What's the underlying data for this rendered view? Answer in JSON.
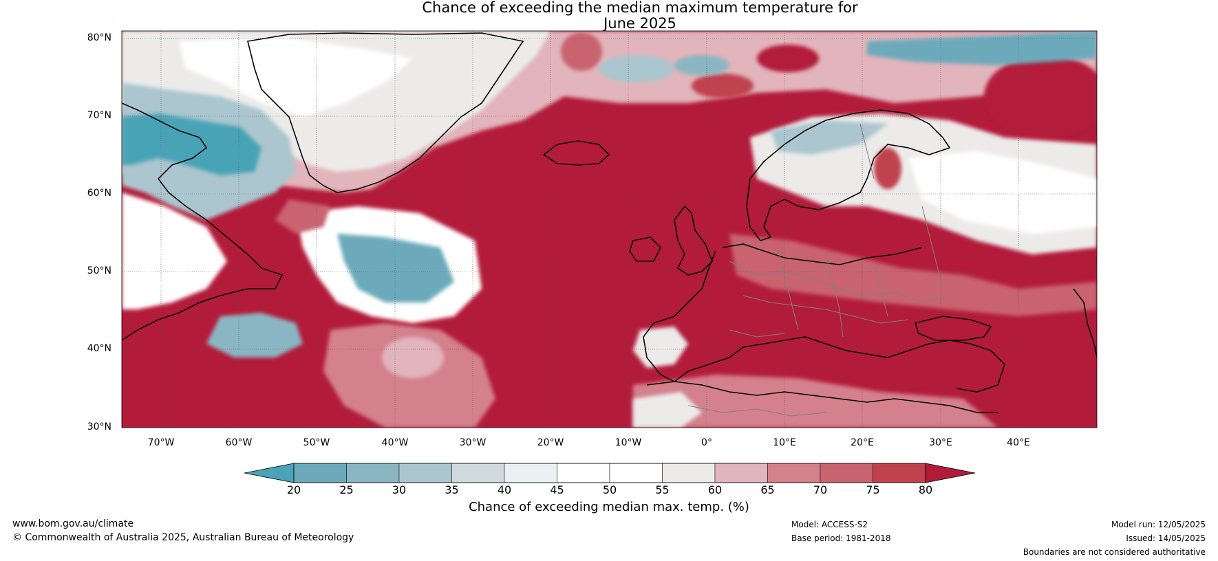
{
  "title": {
    "line1": "Chance of exceeding the median maximum temperature for",
    "line2": "June 2025"
  },
  "map": {
    "lat_labels": [
      "80°N",
      "70°N",
      "60°N",
      "50°N",
      "40°N",
      "30°N"
    ],
    "lon_labels": [
      "70°W",
      "60°W",
      "50°W",
      "40°W",
      "30°W",
      "20°W",
      "10°W",
      "0°",
      "10°E",
      "20°E",
      "30°E",
      "40°E"
    ],
    "lat_range": [
      30,
      81
    ],
    "lon_range": [
      -75,
      50
    ],
    "colors": {
      "ocean_warm": "#b31b3a",
      "neutral": "#ffffff",
      "cool": "#46a3b8",
      "coast": "#000000",
      "border": "#808080"
    }
  },
  "colorbar": {
    "ticks": [
      "20",
      "25",
      "30",
      "35",
      "40",
      "45",
      "50",
      "55",
      "60",
      "65",
      "70",
      "75",
      "80"
    ],
    "colors": [
      "#4aa3b7",
      "#6caabb",
      "#8ab6c3",
      "#abc6ce",
      "#d0dade",
      "#eaf1f3",
      "#ffffff",
      "#ffffff",
      "#ecebea",
      "#e2b4bb",
      "#d4808d",
      "#c96370",
      "#c0424f",
      "#b31b3a"
    ],
    "label": "Chance of exceeding median max. temp. (%)"
  },
  "footer": {
    "website": "www.bom.gov.au/climate",
    "copyright": "© Commonwealth of Australia 2025, Australian Bureau of Meteorology",
    "model": "Model: ACCESS-S2",
    "base_period": "Base period: 1981-2018",
    "model_run": "Model run: 12/05/2025",
    "issued": "Issued: 14/05/2025",
    "disclaimer": "Boundaries are not considered authoritative"
  }
}
